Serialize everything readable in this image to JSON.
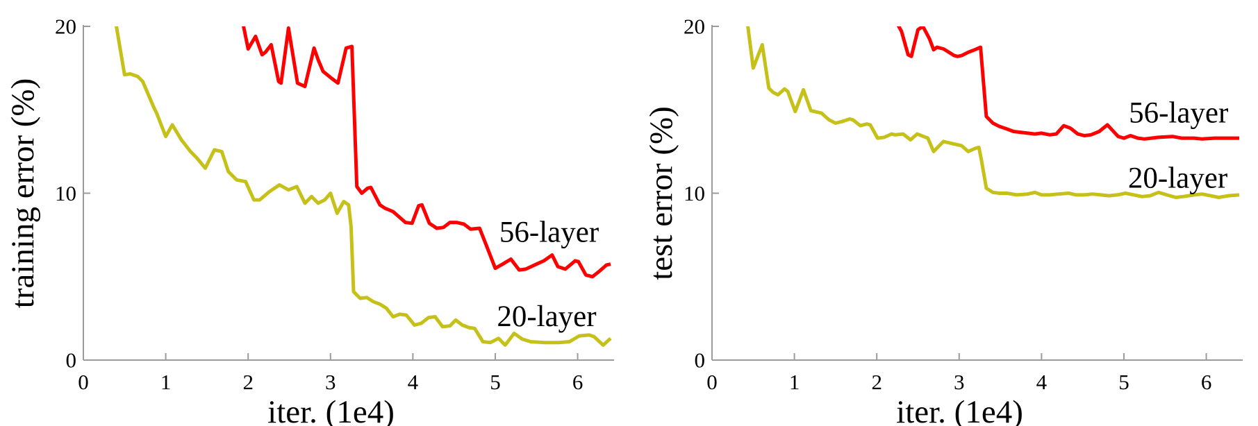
{
  "figure": {
    "background": "#ffffff",
    "axis_color": "#9b9b9b",
    "text_color": "#000000"
  },
  "chart_data": [
    {
      "type": "line",
      "name": "training-error-plot",
      "title": "",
      "xlabel": "iter. (1e4)",
      "ylabel": "training error (%)",
      "xlim": [
        0,
        6.4
      ],
      "ylim": [
        0,
        20
      ],
      "xticks": [
        0,
        1,
        2,
        3,
        4,
        5,
        6
      ],
      "yticks": [
        0,
        10,
        20
      ],
      "grid": false,
      "legend_position": "none",
      "series": [
        {
          "name": "20-layer",
          "color": "#c5c119",
          "points": [
            [
              0.38,
              20.6
            ],
            [
              0.5,
              17.1
            ],
            [
              0.57,
              17.15
            ],
            [
              0.66,
              17.0
            ],
            [
              0.72,
              16.7
            ],
            [
              0.85,
              15.2
            ],
            [
              0.89,
              14.8
            ],
            [
              1.0,
              13.4
            ],
            [
              1.08,
              14.1
            ],
            [
              1.19,
              13.2
            ],
            [
              1.3,
              12.5
            ],
            [
              1.38,
              12.1
            ],
            [
              1.48,
              11.5
            ],
            [
              1.59,
              12.6
            ],
            [
              1.68,
              12.5
            ],
            [
              1.76,
              11.3
            ],
            [
              1.86,
              10.8
            ],
            [
              1.97,
              10.7
            ],
            [
              2.07,
              9.6
            ],
            [
              2.14,
              9.6
            ],
            [
              2.26,
              10.1
            ],
            [
              2.38,
              10.5
            ],
            [
              2.49,
              10.2
            ],
            [
              2.59,
              10.4
            ],
            [
              2.69,
              9.4
            ],
            [
              2.77,
              9.8
            ],
            [
              2.85,
              9.4
            ],
            [
              2.93,
              9.6
            ],
            [
              3.0,
              10.0
            ],
            [
              3.08,
              8.8
            ],
            [
              3.16,
              9.5
            ],
            [
              3.22,
              9.3
            ],
            [
              3.25,
              8.0
            ],
            [
              3.28,
              4.1
            ],
            [
              3.36,
              3.7
            ],
            [
              3.44,
              3.75
            ],
            [
              3.52,
              3.5
            ],
            [
              3.6,
              3.35
            ],
            [
              3.68,
              3.1
            ],
            [
              3.76,
              2.6
            ],
            [
              3.84,
              2.75
            ],
            [
              3.92,
              2.7
            ],
            [
              4.02,
              2.1
            ],
            [
              4.1,
              2.2
            ],
            [
              4.19,
              2.55
            ],
            [
              4.27,
              2.6
            ],
            [
              4.36,
              2.0
            ],
            [
              4.45,
              2.05
            ],
            [
              4.52,
              2.4
            ],
            [
              4.6,
              2.1
            ],
            [
              4.68,
              1.95
            ],
            [
              4.75,
              1.9
            ],
            [
              4.85,
              1.1
            ],
            [
              4.94,
              1.05
            ],
            [
              5.04,
              1.3
            ],
            [
              5.12,
              0.9
            ],
            [
              5.23,
              1.6
            ],
            [
              5.33,
              1.25
            ],
            [
              5.43,
              1.1
            ],
            [
              5.6,
              1.05
            ],
            [
              5.77,
              1.05
            ],
            [
              5.9,
              1.1
            ],
            [
              6.02,
              1.45
            ],
            [
              6.14,
              1.5
            ],
            [
              6.2,
              1.4
            ],
            [
              6.31,
              0.9
            ],
            [
              6.4,
              1.3
            ]
          ]
        },
        {
          "name": "56-layer",
          "color": "#fe0000",
          "points": [
            [
              1.92,
              20.6
            ],
            [
              2.0,
              18.65
            ],
            [
              2.09,
              19.4
            ],
            [
              2.17,
              18.3
            ],
            [
              2.21,
              18.45
            ],
            [
              2.28,
              18.9
            ],
            [
              2.37,
              16.7
            ],
            [
              2.4,
              16.6
            ],
            [
              2.49,
              19.9
            ],
            [
              2.6,
              16.6
            ],
            [
              2.69,
              16.4
            ],
            [
              2.8,
              18.7
            ],
            [
              2.85,
              18.0
            ],
            [
              2.91,
              17.3
            ],
            [
              3.01,
              16.9
            ],
            [
              3.09,
              16.6
            ],
            [
              3.19,
              18.7
            ],
            [
              3.26,
              18.8
            ],
            [
              3.32,
              10.4
            ],
            [
              3.38,
              10.0
            ],
            [
              3.45,
              10.3
            ],
            [
              3.49,
              10.35
            ],
            [
              3.6,
              9.3
            ],
            [
              3.66,
              9.1
            ],
            [
              3.76,
              8.9
            ],
            [
              3.91,
              8.25
            ],
            [
              3.99,
              8.2
            ],
            [
              4.07,
              9.25
            ],
            [
              4.11,
              9.3
            ],
            [
              4.2,
              8.2
            ],
            [
              4.29,
              7.9
            ],
            [
              4.37,
              7.95
            ],
            [
              4.45,
              8.25
            ],
            [
              4.53,
              8.25
            ],
            [
              4.62,
              8.15
            ],
            [
              4.7,
              7.85
            ],
            [
              4.81,
              7.9
            ],
            [
              4.89,
              6.9
            ],
            [
              5.0,
              5.5
            ],
            [
              5.09,
              5.75
            ],
            [
              5.19,
              6.05
            ],
            [
              5.29,
              5.4
            ],
            [
              5.37,
              5.45
            ],
            [
              5.5,
              5.75
            ],
            [
              5.59,
              5.95
            ],
            [
              5.69,
              6.3
            ],
            [
              5.76,
              5.6
            ],
            [
              5.85,
              5.45
            ],
            [
              5.97,
              5.95
            ],
            [
              6.01,
              5.9
            ],
            [
              6.1,
              5.1
            ],
            [
              6.18,
              5.0
            ],
            [
              6.27,
              5.35
            ],
            [
              6.35,
              5.7
            ],
            [
              6.4,
              5.75
            ]
          ]
        }
      ],
      "annotations": [
        {
          "text": "56-layer",
          "x": 5.05,
          "y": 7.65
        },
        {
          "text": "20-layer",
          "x": 5.02,
          "y": 2.6
        }
      ]
    },
    {
      "type": "line",
      "name": "test-error-plot",
      "title": "",
      "xlabel": "iter. (1e4)",
      "ylabel": "test error (%)",
      "xlim": [
        0,
        6.4
      ],
      "ylim": [
        0,
        20
      ],
      "xticks": [
        0,
        1,
        2,
        3,
        4,
        5,
        6
      ],
      "yticks": [
        0,
        10,
        20
      ],
      "grid": false,
      "legend_position": "none",
      "series": [
        {
          "name": "20-layer",
          "color": "#c5c119",
          "points": [
            [
              0.42,
              20.6
            ],
            [
              0.5,
              17.5
            ],
            [
              0.61,
              18.9
            ],
            [
              0.69,
              16.3
            ],
            [
              0.74,
              16.05
            ],
            [
              0.8,
              15.9
            ],
            [
              0.88,
              16.25
            ],
            [
              0.92,
              16.1
            ],
            [
              1.01,
              14.9
            ],
            [
              1.11,
              16.2
            ],
            [
              1.2,
              14.95
            ],
            [
              1.29,
              14.85
            ],
            [
              1.33,
              14.8
            ],
            [
              1.42,
              14.4
            ],
            [
              1.5,
              14.2
            ],
            [
              1.58,
              14.3
            ],
            [
              1.67,
              14.45
            ],
            [
              1.71,
              14.4
            ],
            [
              1.8,
              14.05
            ],
            [
              1.88,
              14.15
            ],
            [
              1.92,
              14.1
            ],
            [
              2.01,
              13.3
            ],
            [
              2.09,
              13.35
            ],
            [
              2.18,
              13.55
            ],
            [
              2.22,
              13.5
            ],
            [
              2.32,
              13.55
            ],
            [
              2.41,
              13.2
            ],
            [
              2.49,
              13.55
            ],
            [
              2.62,
              13.3
            ],
            [
              2.69,
              12.5
            ],
            [
              2.81,
              13.1
            ],
            [
              2.94,
              12.95
            ],
            [
              3.03,
              12.85
            ],
            [
              3.11,
              12.5
            ],
            [
              3.2,
              12.7
            ],
            [
              3.24,
              12.75
            ],
            [
              3.27,
              12.0
            ],
            [
              3.33,
              10.3
            ],
            [
              3.41,
              10.05
            ],
            [
              3.49,
              10.0
            ],
            [
              3.58,
              10.0
            ],
            [
              3.7,
              9.9
            ],
            [
              3.83,
              9.95
            ],
            [
              3.92,
              10.05
            ],
            [
              4.0,
              9.9
            ],
            [
              4.1,
              9.9
            ],
            [
              4.2,
              9.95
            ],
            [
              4.33,
              10.0
            ],
            [
              4.42,
              9.9
            ],
            [
              4.52,
              9.9
            ],
            [
              4.62,
              9.95
            ],
            [
              4.72,
              9.9
            ],
            [
              4.82,
              9.85
            ],
            [
              4.92,
              9.9
            ],
            [
              5.02,
              10.0
            ],
            [
              5.12,
              9.9
            ],
            [
              5.22,
              9.8
            ],
            [
              5.32,
              9.85
            ],
            [
              5.42,
              10.05
            ],
            [
              5.52,
              9.9
            ],
            [
              5.63,
              9.75
            ],
            [
              5.72,
              9.8
            ],
            [
              5.85,
              9.9
            ],
            [
              5.95,
              9.95
            ],
            [
              6.05,
              9.85
            ],
            [
              6.15,
              9.75
            ],
            [
              6.27,
              9.85
            ],
            [
              6.4,
              9.9
            ]
          ]
        },
        {
          "name": "56-layer",
          "color": "#fe0000",
          "points": [
            [
              2.2,
              20.6
            ],
            [
              2.3,
              19.7
            ],
            [
              2.38,
              18.3
            ],
            [
              2.42,
              18.2
            ],
            [
              2.5,
              19.8
            ],
            [
              2.56,
              20.0
            ],
            [
              2.64,
              19.25
            ],
            [
              2.69,
              18.6
            ],
            [
              2.73,
              18.75
            ],
            [
              2.81,
              18.65
            ],
            [
              2.86,
              18.5
            ],
            [
              2.94,
              18.25
            ],
            [
              2.98,
              18.2
            ],
            [
              3.03,
              18.25
            ],
            [
              3.11,
              18.45
            ],
            [
              3.19,
              18.6
            ],
            [
              3.26,
              18.75
            ],
            [
              3.33,
              14.6
            ],
            [
              3.41,
              14.2
            ],
            [
              3.49,
              14.0
            ],
            [
              3.58,
              13.85
            ],
            [
              3.66,
              13.7
            ],
            [
              3.83,
              13.6
            ],
            [
              3.92,
              13.55
            ],
            [
              4.0,
              13.6
            ],
            [
              4.1,
              13.5
            ],
            [
              4.18,
              13.55
            ],
            [
              4.27,
              14.05
            ],
            [
              4.35,
              13.9
            ],
            [
              4.44,
              13.55
            ],
            [
              4.52,
              13.45
            ],
            [
              4.6,
              13.5
            ],
            [
              4.7,
              13.7
            ],
            [
              4.8,
              14.1
            ],
            [
              4.93,
              13.4
            ],
            [
              5.0,
              13.3
            ],
            [
              5.08,
              13.45
            ],
            [
              5.17,
              13.3
            ],
            [
              5.25,
              13.25
            ],
            [
              5.42,
              13.35
            ],
            [
              5.59,
              13.4
            ],
            [
              5.7,
              13.3
            ],
            [
              5.85,
              13.3
            ],
            [
              5.95,
              13.25
            ],
            [
              6.1,
              13.3
            ],
            [
              6.27,
              13.3
            ],
            [
              6.4,
              13.3
            ]
          ]
        }
      ],
      "annotations": [
        {
          "text": "56-layer",
          "x": 5.06,
          "y": 14.8
        },
        {
          "text": "20-layer",
          "x": 5.05,
          "y": 10.9
        }
      ]
    }
  ]
}
